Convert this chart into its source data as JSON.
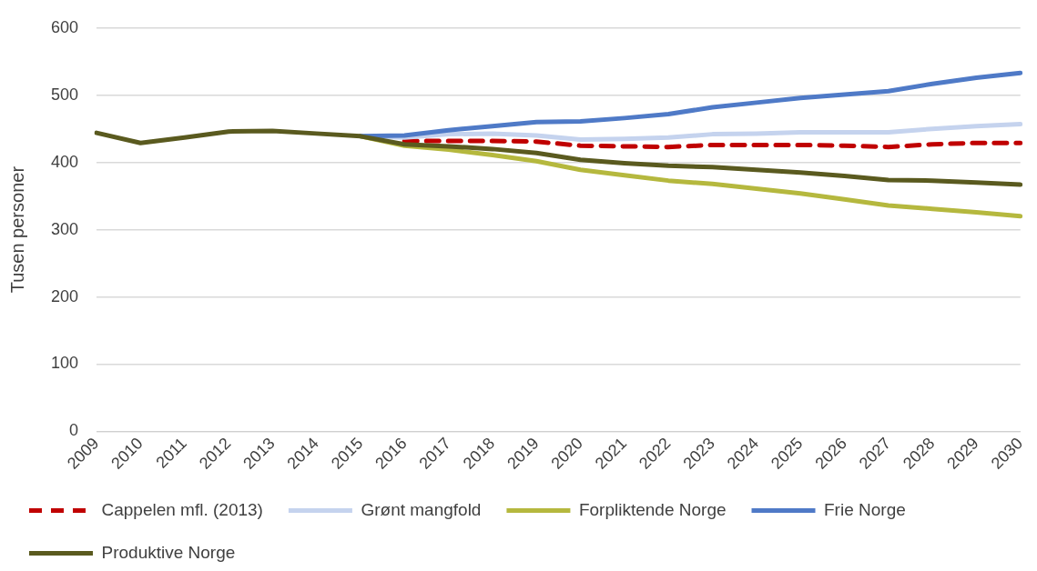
{
  "chart_data": {
    "type": "line",
    "ylabel": "Tusen personer",
    "categories": [
      "2009",
      "2010",
      "2011",
      "2012",
      "2013",
      "2014",
      "2015",
      "2016",
      "2017",
      "2018",
      "2019",
      "2020",
      "2021",
      "2022",
      "2023",
      "2024",
      "2025",
      "2026",
      "2027",
      "2028",
      "2029",
      "2030"
    ],
    "series": [
      {
        "name": "Cappelen mfl. (2013)",
        "color": "#c00000",
        "line_style": "dashed",
        "values": [
          null,
          null,
          null,
          null,
          null,
          null,
          null,
          432,
          432,
          432,
          431,
          425,
          424,
          423,
          426,
          426,
          426,
          425,
          423,
          427,
          429,
          429
        ]
      },
      {
        "name": "Grønt mangfold",
        "color": "#c5d3ee",
        "values": [
          null,
          null,
          null,
          null,
          null,
          null,
          439,
          437,
          442,
          443,
          440,
          434,
          435,
          437,
          442,
          443,
          445,
          445,
          445,
          450,
          454,
          457
        ]
      },
      {
        "name": "Forpliktende Norge",
        "color": "#b5b83e",
        "values": [
          null,
          null,
          null,
          null,
          null,
          null,
          439,
          425,
          419,
          411,
          402,
          389,
          381,
          373,
          368,
          361,
          354,
          345,
          336,
          331,
          326,
          320
        ]
      },
      {
        "name": "Frie Norge",
        "color": "#4f7ac7",
        "values": [
          null,
          null,
          null,
          null,
          null,
          null,
          439,
          440,
          448,
          454,
          460,
          461,
          466,
          472,
          482,
          489,
          496,
          501,
          506,
          517,
          526,
          533
        ]
      },
      {
        "name": "Produktive Norge",
        "color": "#5a5a1f",
        "values": [
          444,
          429,
          437,
          446,
          447,
          443,
          439,
          427,
          424,
          420,
          414,
          404,
          399,
          395,
          393,
          389,
          385,
          380,
          374,
          373,
          370,
          367
        ]
      }
    ],
    "ylim": [
      0,
      600
    ],
    "yticks": [
      0,
      100,
      200,
      300,
      400,
      500,
      600
    ],
    "grid": "y",
    "legend": "bottom",
    "line_style": "solid",
    "marker": "none"
  }
}
